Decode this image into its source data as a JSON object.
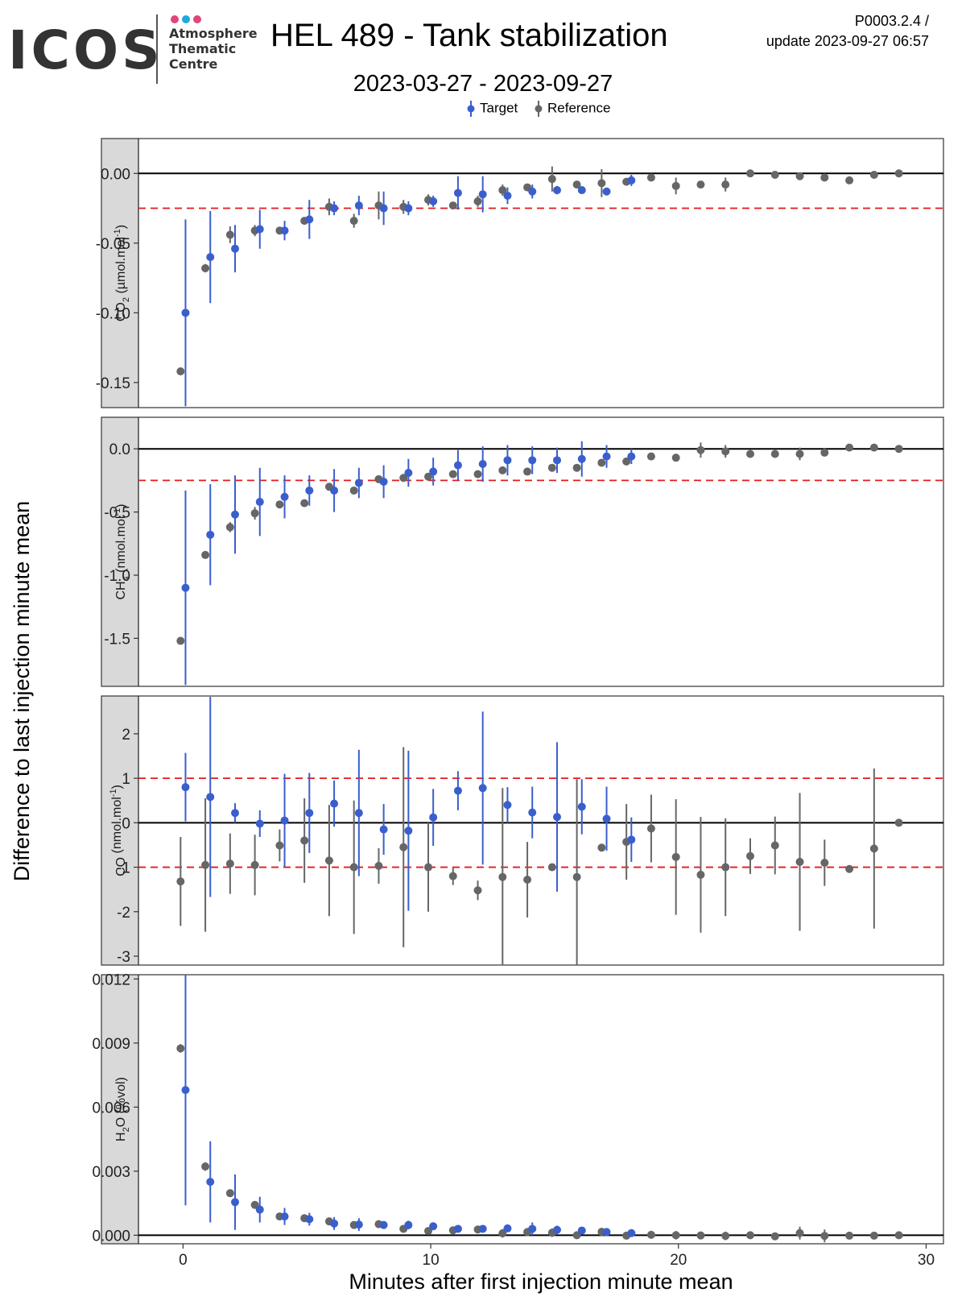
{
  "header": {
    "logo_text": "ICOS",
    "logo_sub_1": "Atmosphere",
    "logo_sub_2": "Thematic",
    "logo_sub_3": "Centre",
    "title": "HEL 489 - Tank stabilization",
    "subtitle": "2023-03-27 - 2023-09-27",
    "version": "P0003.2.4 /",
    "updated": "update  2023-09-27 06:57"
  },
  "colors": {
    "target": "#3a5fcd",
    "reference": "#666666",
    "threshold": "#e41a1c",
    "strip": "#d9d9d9",
    "logo_dots": [
      "#e0457b",
      "#1ea7e0",
      "#e0457b"
    ]
  },
  "chart_data": {
    "type": "scatter",
    "xlabel": "Minutes after first injection minute mean",
    "ylabel": "Difference to last injection minute mean",
    "xlim": [
      -1.8,
      30.7
    ],
    "xticks": [
      0,
      10,
      20,
      30
    ],
    "legend": {
      "placement": "top",
      "entries": [
        "Target",
        "Reference"
      ]
    },
    "panels": [
      {
        "strip_label": "CO2 (µmol.mol-1)",
        "strip_main": "CO",
        "strip_sub": "2",
        "strip_rest": " (µmol.mol",
        "strip_sup": "-1",
        "strip_end": ")",
        "ylim": [
          -0.168,
          0.025
        ],
        "yticks": [
          0.0,
          -0.05,
          -0.1,
          -0.15
        ],
        "ytick_labels": [
          "0.00",
          "-0.05",
          "-0.10",
          "-0.15"
        ],
        "thresholds": [
          -0.025
        ],
        "reference": {
          "x": [
            -0.1,
            0.9,
            1.9,
            2.9,
            3.9,
            4.9,
            5.9,
            6.9,
            7.9,
            8.9,
            9.9,
            10.9,
            11.9,
            12.9,
            13.9,
            14.9,
            15.9,
            16.9,
            17.9,
            18.9,
            19.9,
            20.9,
            21.9,
            22.9,
            23.9,
            24.9,
            25.9,
            26.9,
            27.9,
            28.9
          ],
          "y": [
            -0.142,
            -0.068,
            -0.044,
            -0.041,
            -0.041,
            -0.034,
            -0.024,
            -0.034,
            -0.023,
            -0.024,
            -0.019,
            -0.023,
            -0.02,
            -0.012,
            -0.01,
            -0.004,
            -0.008,
            -0.007,
            -0.006,
            -0.003,
            -0.009,
            -0.008,
            -0.008,
            0.0,
            -0.001,
            -0.002,
            -0.003,
            -0.005,
            -0.001,
            0.0
          ],
          "err": [
            0.001,
            0.003,
            0.006,
            0.004,
            0.002,
            0.002,
            0.006,
            0.005,
            0.01,
            0.005,
            0.004,
            0.002,
            0.004,
            0.004,
            0.002,
            0.009,
            0.002,
            0.01,
            0.002,
            0.002,
            0.006,
            0.002,
            0.005,
            0.002,
            0.002,
            0.002,
            0.002,
            0.002,
            0.002,
            0.002
          ]
        },
        "target": {
          "x": [
            0.1,
            1.1,
            2.1,
            3.1,
            4.1,
            5.1,
            6.1,
            7.1,
            8.1,
            9.1,
            10.1,
            11.1,
            12.1,
            13.1,
            14.1,
            15.1,
            16.1,
            17.1,
            18.1
          ],
          "y": [
            -0.1,
            -0.06,
            -0.054,
            -0.04,
            -0.041,
            -0.033,
            -0.025,
            -0.023,
            -0.025,
            -0.025,
            -0.02,
            -0.014,
            -0.015,
            -0.016,
            -0.013,
            -0.012,
            -0.012,
            -0.013,
            -0.005
          ],
          "err": [
            0.067,
            0.033,
            0.017,
            0.014,
            0.007,
            0.014,
            0.005,
            0.007,
            0.012,
            0.005,
            0.004,
            0.012,
            0.013,
            0.006,
            0.005,
            0.003,
            0.002,
            0.002,
            0.004
          ]
        }
      },
      {
        "strip_label": "CH4 (nmol.mol-1)",
        "strip_main": "CH",
        "strip_sub": "4",
        "strip_rest": " (nmol.mol",
        "strip_sup": "-1",
        "strip_end": ")",
        "ylim": [
          -1.88,
          0.25
        ],
        "yticks": [
          0.0,
          -0.5,
          -1.0,
          -1.5
        ],
        "ytick_labels": [
          "0.0",
          "-0.5",
          "-1.0",
          "-1.5"
        ],
        "thresholds": [
          -0.25
        ],
        "reference": {
          "x": [
            -0.1,
            0.9,
            1.9,
            2.9,
            3.9,
            4.9,
            5.9,
            6.9,
            7.9,
            8.9,
            9.9,
            10.9,
            11.9,
            12.9,
            13.9,
            14.9,
            15.9,
            16.9,
            17.9,
            18.9,
            19.9,
            20.9,
            21.9,
            22.9,
            23.9,
            24.9,
            25.9,
            26.9,
            27.9,
            28.9
          ],
          "y": [
            -1.52,
            -0.84,
            -0.62,
            -0.51,
            -0.44,
            -0.43,
            -0.3,
            -0.33,
            -0.24,
            -0.23,
            -0.22,
            -0.2,
            -0.2,
            -0.17,
            -0.18,
            -0.15,
            -0.15,
            -0.11,
            -0.1,
            -0.06,
            -0.07,
            -0.01,
            -0.02,
            -0.04,
            -0.04,
            -0.04,
            -0.03,
            0.01,
            0.01,
            0.0
          ],
          "err": [
            0.02,
            0.02,
            0.04,
            0.05,
            0.02,
            0.02,
            0.03,
            0.03,
            0.03,
            0.02,
            0.03,
            0.02,
            0.02,
            0.02,
            0.02,
            0.02,
            0.02,
            0.02,
            0.03,
            0.02,
            0.02,
            0.06,
            0.05,
            0.02,
            0.02,
            0.05,
            0.02,
            0.02,
            0.02,
            0.02
          ]
        },
        "target": {
          "x": [
            0.1,
            1.1,
            2.1,
            3.1,
            4.1,
            5.1,
            6.1,
            7.1,
            8.1,
            9.1,
            10.1,
            11.1,
            12.1,
            13.1,
            14.1,
            15.1,
            16.1,
            17.1,
            18.1
          ],
          "y": [
            -1.1,
            -0.68,
            -0.52,
            -0.42,
            -0.38,
            -0.33,
            -0.33,
            -0.27,
            -0.26,
            -0.19,
            -0.18,
            -0.13,
            -0.12,
            -0.09,
            -0.09,
            -0.09,
            -0.08,
            -0.06,
            -0.06
          ],
          "err": [
            0.77,
            0.4,
            0.31,
            0.27,
            0.17,
            0.12,
            0.17,
            0.12,
            0.13,
            0.11,
            0.11,
            0.12,
            0.14,
            0.12,
            0.11,
            0.1,
            0.14,
            0.09,
            0.06
          ]
        }
      },
      {
        "strip_label": "CO (nmol.mol-1)",
        "strip_main": "CO",
        "strip_sub": "",
        "strip_rest": " (nmol.mol",
        "strip_sup": "-1",
        "strip_end": ")",
        "ylim": [
          -3.2,
          2.85
        ],
        "yticks": [
          2,
          1,
          0,
          -1,
          -2,
          -3
        ],
        "ytick_labels": [
          "2",
          "1",
          "0",
          "-1",
          "-2",
          "-3"
        ],
        "thresholds": [
          1,
          -1
        ],
        "reference": {
          "x": [
            -0.1,
            0.9,
            1.9,
            2.9,
            3.9,
            4.9,
            5.9,
            6.9,
            7.9,
            8.9,
            9.9,
            10.9,
            11.9,
            12.9,
            13.9,
            14.9,
            15.9,
            16.9,
            17.9,
            18.9,
            19.9,
            20.9,
            21.9,
            22.9,
            23.9,
            24.9,
            25.9,
            26.9,
            27.9,
            28.9
          ],
          "y": [
            -1.32,
            -0.95,
            -0.92,
            -0.95,
            -0.51,
            -0.4,
            -0.85,
            -1.0,
            -0.97,
            -0.55,
            -1.0,
            -1.2,
            -1.52,
            -1.22,
            -1.28,
            -1.0,
            -1.22,
            -0.56,
            -0.43,
            -0.13,
            -0.77,
            -1.17,
            -1.0,
            -0.75,
            -0.51,
            -0.88,
            -0.9,
            -1.04,
            -0.58,
            0.0
          ],
          "err": [
            1.0,
            1.5,
            0.68,
            0.68,
            0.36,
            0.95,
            1.25,
            1.5,
            0.4,
            2.25,
            1.0,
            0.2,
            0.22,
            2.0,
            0.85,
            0.05,
            2.2,
            0.05,
            0.85,
            0.76,
            1.3,
            1.3,
            1.1,
            0.4,
            0.65,
            1.55,
            0.52,
            0.05,
            1.8,
            0.05
          ]
        },
        "target": {
          "x": [
            0.1,
            1.1,
            2.1,
            3.1,
            4.1,
            5.1,
            6.1,
            7.1,
            8.1,
            9.1,
            10.1,
            11.1,
            12.1,
            13.1,
            14.1,
            15.1,
            16.1,
            17.1,
            18.1
          ],
          "y": [
            0.8,
            0.58,
            0.22,
            -0.02,
            0.05,
            0.22,
            0.43,
            0.22,
            -0.15,
            -0.18,
            0.12,
            0.72,
            0.78,
            0.4,
            0.23,
            0.13,
            0.36,
            0.09,
            -0.38
          ],
          "err": [
            0.77,
            2.25,
            0.22,
            0.3,
            1.05,
            0.9,
            0.52,
            1.42,
            0.57,
            1.8,
            0.64,
            0.44,
            1.72,
            0.4,
            0.58,
            1.68,
            0.62,
            0.72,
            0.5
          ]
        }
      },
      {
        "strip_label": "H2O (%vol)",
        "strip_main": "H",
        "strip_sub": "2",
        "strip_rest": "O (%vol)",
        "strip_sup": "",
        "strip_end": "",
        "ylim": [
          -0.0004,
          0.0122
        ],
        "yticks": [
          0.012,
          0.009,
          0.006,
          0.003,
          0.0
        ],
        "ytick_labels": [
          "0.012",
          "0.009",
          "0.006",
          "0.003",
          "0.000"
        ],
        "thresholds": [],
        "reference": {
          "x": [
            -0.1,
            0.9,
            1.9,
            2.9,
            3.9,
            4.9,
            5.9,
            6.9,
            7.9,
            8.9,
            9.9,
            10.9,
            11.9,
            12.9,
            13.9,
            14.9,
            15.9,
            16.9,
            17.9,
            18.9,
            19.9,
            20.9,
            21.9,
            22.9,
            23.9,
            24.9,
            25.9,
            26.9,
            27.9,
            28.9
          ],
          "y": [
            0.00875,
            0.00322,
            0.00197,
            0.00142,
            0.00088,
            0.0008,
            0.00065,
            0.00048,
            0.00052,
            0.0003,
            0.0002,
            0.00023,
            0.00027,
            9e-05,
            0.00015,
            0.00012,
            0.0,
            0.00016,
            -2e-05,
            2e-05,
            0.0,
            -1e-05,
            -3e-05,
            0.0,
            -5e-05,
            0.0001,
            -3e-05,
            -2e-05,
            -2e-05,
            0.0
          ],
          "err": [
            0.0002,
            0.0002,
            0.0001,
            0.0001,
            0.0001,
            0.0001,
            0.0001,
            0.0001,
            0.0001,
            0.0001,
            0.0001,
            0.0001,
            0.0001,
            0.0002,
            0.0001,
            0.0002,
            0.0001,
            0.0001,
            0.0001,
            0.0001,
            0.0002,
            0.0001,
            0.0002,
            0.0001,
            0.0001,
            0.0003,
            0.0003,
            0.0001,
            0.0001,
            0.0001
          ]
        },
        "target": {
          "x": [
            0.1,
            1.1,
            2.1,
            3.1,
            4.1,
            5.1,
            6.1,
            7.1,
            8.1,
            9.1,
            10.1,
            11.1,
            12.1,
            13.1,
            14.1,
            15.1,
            16.1,
            17.1,
            18.1
          ],
          "y": [
            0.0068,
            0.0025,
            0.00155,
            0.0012,
            0.00088,
            0.00075,
            0.00055,
            0.0005,
            0.00048,
            0.00048,
            0.00042,
            0.0003,
            0.0003,
            0.00032,
            0.0003,
            0.00025,
            0.00022,
            0.00015,
            0.0001
          ],
          "err": [
            0.0054,
            0.0019,
            0.0013,
            0.0006,
            0.0004,
            0.0003,
            0.0003,
            0.0003,
            0.0001,
            0.0002,
            0.0001,
            0.0001,
            0.0001,
            0.0001,
            0.0003,
            0.0002,
            0.0001,
            0.0001,
            0.0001
          ]
        }
      }
    ]
  }
}
